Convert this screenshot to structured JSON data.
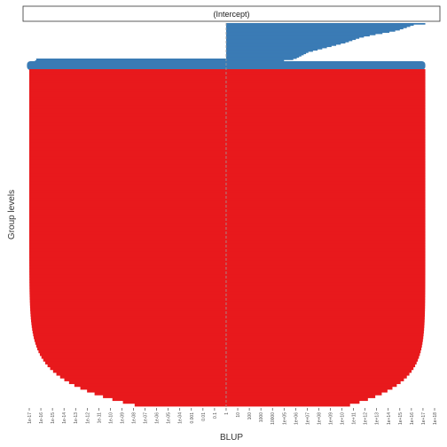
{
  "chart_data": {
    "type": "bar",
    "title": "",
    "facet_label": "(Intercept)",
    "xlabel": "BLUP",
    "ylabel": "Group levels",
    "x_scale": "log10",
    "x_ticks": [
      "1e-17",
      "1e-16",
      "1e-15",
      "1e-14",
      "1e-13",
      "1e-12",
      "1e-11",
      "1e-10",
      "1e-09",
      "1e-08",
      "1e-07",
      "1e-06",
      "1e-05",
      "1e-04",
      "0.001",
      "0.01",
      "0.1",
      "1",
      "10",
      "100",
      "1000",
      "10000",
      "1e+05",
      "1e+06",
      "1e+07",
      "1e+08",
      "1e+09",
      "1e+10",
      "1e+11",
      "1e+12",
      "1e+13",
      "1e+14",
      "1e+15",
      "1e+16",
      "1e+17",
      "1e+18"
    ],
    "xlim": [
      1e-17,
      1e+18
    ],
    "reference_line": 1,
    "grid": false,
    "legend": "none",
    "colors": {
      "positive": "#3a7bb5",
      "negative": "#e8191c",
      "facet_border": "#333333"
    },
    "series": [
      {
        "sign": "positive",
        "sorted_upper_bounds_log10": [
          17.2,
          16.2,
          15.9,
          15.6,
          15.3,
          15.0,
          14.6,
          14.1,
          13.5,
          12.9,
          12.4,
          11.9,
          11.5,
          11.2,
          10.9,
          10.6,
          10.3,
          9.9,
          9.5,
          9.1,
          8.7,
          8.3,
          7.9,
          7.5,
          7.1,
          6.9,
          6.7,
          6.5,
          6.3,
          6.1,
          5.8,
          5.0,
          4.2,
          3.4,
          2.6,
          1.8,
          1.2,
          0.7,
          0.2
        ]
      },
      {
        "sign": "negative",
        "summary": "about 460 group levels with BLUP below 1; most lower bounds lie near 1e-17, rising to about 1e-08 at the last level",
        "lower_bound_log10_first": -17.0,
        "lower_bound_log10_last": -7.9
      }
    ]
  }
}
